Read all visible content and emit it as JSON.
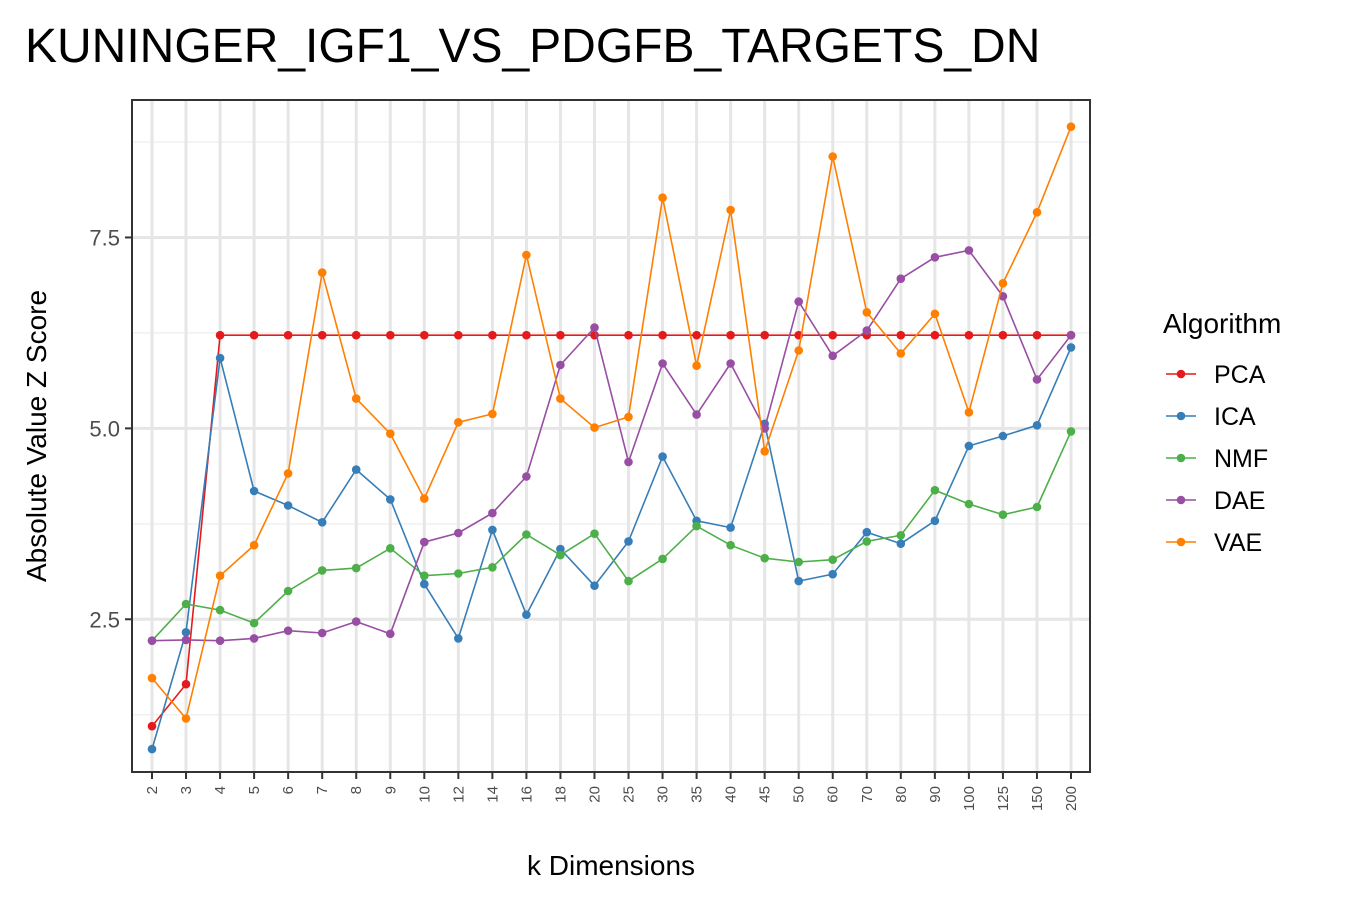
{
  "chart_data": {
    "type": "line",
    "title": "KUNINGER_IGF1_VS_PDGFB_TARGETS_DN",
    "xlabel": "k Dimensions",
    "ylabel": "Absolute Value Z Score",
    "categories": [
      "2",
      "3",
      "4",
      "5",
      "6",
      "7",
      "8",
      "9",
      "10",
      "12",
      "14",
      "16",
      "18",
      "20",
      "25",
      "30",
      "35",
      "40",
      "45",
      "50",
      "60",
      "70",
      "80",
      "90",
      "100",
      "125",
      "150",
      "200"
    ],
    "y_ticks": [
      "2.5",
      "5.0",
      "7.5"
    ],
    "ylim": [
      0.5,
      9.3
    ],
    "grid": true,
    "legend": {
      "title": "Algorithm",
      "position": "right"
    },
    "series": [
      {
        "name": "PCA",
        "color": "#e41a1c",
        "values": [
          1.1,
          1.65,
          6.22,
          6.22,
          6.22,
          6.22,
          6.22,
          6.22,
          6.22,
          6.22,
          6.22,
          6.22,
          6.22,
          6.22,
          6.22,
          6.22,
          6.22,
          6.22,
          6.22,
          6.22,
          6.22,
          6.22,
          6.22,
          6.22,
          6.22,
          6.22,
          6.22,
          6.22
        ]
      },
      {
        "name": "ICA",
        "color": "#377eb8",
        "values": [
          0.8,
          2.33,
          5.92,
          4.18,
          3.99,
          3.77,
          4.46,
          4.07,
          2.96,
          2.25,
          3.67,
          2.56,
          3.42,
          2.94,
          3.52,
          4.63,
          3.79,
          3.7,
          5.06,
          3.0,
          3.09,
          3.64,
          3.49,
          3.79,
          4.77,
          4.9,
          5.04,
          6.06
        ]
      },
      {
        "name": "NMF",
        "color": "#4daf4a",
        "values": [
          2.22,
          2.7,
          2.62,
          2.45,
          2.87,
          3.14,
          3.17,
          3.43,
          3.07,
          3.1,
          3.18,
          3.61,
          3.34,
          3.62,
          3.0,
          3.29,
          3.72,
          3.47,
          3.3,
          3.25,
          3.28,
          3.52,
          3.6,
          4.19,
          4.01,
          3.87,
          3.97,
          4.96
        ]
      },
      {
        "name": "DAE",
        "color": "#984ea3",
        "values": [
          2.22,
          2.23,
          2.22,
          2.25,
          2.35,
          2.32,
          2.47,
          2.31,
          3.51,
          3.63,
          3.89,
          4.37,
          5.83,
          6.32,
          4.56,
          5.85,
          5.18,
          5.85,
          5.0,
          6.66,
          5.95,
          6.28,
          6.96,
          7.24,
          7.33,
          6.73,
          5.64,
          6.22
        ]
      },
      {
        "name": "VAE",
        "color": "#ff7f00",
        "values": [
          1.73,
          1.2,
          3.07,
          3.47,
          4.41,
          7.04,
          5.39,
          4.93,
          4.08,
          5.08,
          5.19,
          7.27,
          5.39,
          5.01,
          5.15,
          8.02,
          5.82,
          7.86,
          4.7,
          6.02,
          8.56,
          6.52,
          5.98,
          6.5,
          5.21,
          6.9,
          7.83,
          8.95
        ]
      }
    ]
  }
}
